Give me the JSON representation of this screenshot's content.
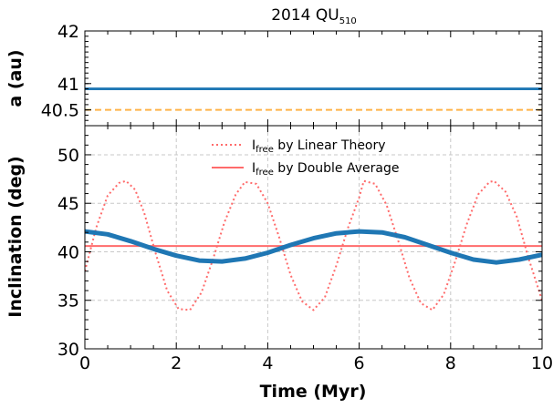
{
  "title": {
    "main": "2014 QU",
    "subscript": "510"
  },
  "colors": {
    "simulation": "#1f77b4",
    "reference_a": "#ffb347",
    "linear_theory": "#ff6b6b",
    "double_average": "#ff6b6b",
    "grid": "#c8c8c8"
  },
  "chart_data": [
    {
      "id": "top-panel",
      "type": "scatter",
      "ylabel": "a (au)",
      "ylim": [
        40.2,
        42
      ],
      "yticks": [
        40.5,
        41,
        42
      ],
      "ytick_labels": [
        "40.5",
        "41",
        "42"
      ],
      "xlim": [
        0,
        10
      ],
      "grid": false,
      "series": [
        {
          "role": "simulation",
          "style": "points",
          "thickness_au": 0.05,
          "x": [
            0,
            10
          ],
          "y": [
            40.9,
            40.9
          ]
        },
        {
          "role": "reference",
          "style": "dashed",
          "x": [
            0,
            10
          ],
          "y": [
            40.5,
            40.5
          ]
        }
      ]
    },
    {
      "id": "bottom-panel",
      "type": "line",
      "xlabel": "Time (Myr)",
      "ylabel": "Inclination (deg)",
      "xlim": [
        0,
        10
      ],
      "ylim": [
        30,
        53
      ],
      "xticks": [
        0,
        2,
        4,
        6,
        8,
        10
      ],
      "xtick_labels": [
        "0",
        "2",
        "4",
        "6",
        "8",
        "10"
      ],
      "yticks": [
        30,
        35,
        40,
        45,
        50
      ],
      "ytick_labels": [
        "30",
        "35",
        "40",
        "45",
        "50"
      ],
      "grid": true,
      "legend_position": "top-center",
      "series": [
        {
          "name_main": "I",
          "name_sub": "free",
          "name_rest": " by Linear Theory",
          "style": "dotted",
          "x": [
            0,
            0.25,
            0.5,
            0.75,
            0.9,
            1.1,
            1.3,
            1.55,
            1.8,
            2.05,
            2.3,
            2.55,
            2.8,
            3.05,
            3.3,
            3.5,
            3.75,
            4.0,
            4.25,
            4.5,
            4.75,
            5.0,
            5.25,
            5.5,
            5.75,
            6.0,
            6.1,
            6.35,
            6.6,
            6.85,
            7.1,
            7.35,
            7.6,
            7.85,
            8.1,
            8.35,
            8.6,
            8.85,
            8.95,
            9.2,
            9.45,
            9.7,
            10.0
          ],
          "y": [
            38.0,
            42.5,
            45.8,
            47.1,
            47.3,
            46.4,
            44.0,
            39.8,
            36.0,
            34.1,
            34.0,
            35.8,
            39.2,
            43.0,
            45.9,
            47.2,
            47.0,
            45.0,
            41.5,
            37.6,
            34.9,
            34.0,
            35.3,
            38.6,
            42.4,
            45.6,
            47.3,
            47.0,
            44.8,
            41.2,
            37.3,
            34.7,
            34.0,
            35.6,
            39.0,
            42.8,
            45.9,
            47.2,
            47.3,
            46.2,
            43.6,
            39.4,
            35.0
          ]
        },
        {
          "name_main": "I",
          "name_sub": "free",
          "name_rest": " by Double Average",
          "style": "solid",
          "x": [
            0,
            10
          ],
          "y": [
            40.6,
            40.6
          ]
        },
        {
          "role": "simulation",
          "style": "thick",
          "x": [
            0,
            0.5,
            1.0,
            1.5,
            2.0,
            2.5,
            3.0,
            3.5,
            4.0,
            4.5,
            5.0,
            5.5,
            6.0,
            6.5,
            7.0,
            7.5,
            8.0,
            8.5,
            9.0,
            9.5,
            10.0
          ],
          "y": [
            42.1,
            41.8,
            41.1,
            40.3,
            39.6,
            39.1,
            39.0,
            39.3,
            39.9,
            40.7,
            41.4,
            41.9,
            42.1,
            42.0,
            41.5,
            40.7,
            39.9,
            39.2,
            38.9,
            39.2,
            39.7
          ]
        }
      ]
    }
  ]
}
